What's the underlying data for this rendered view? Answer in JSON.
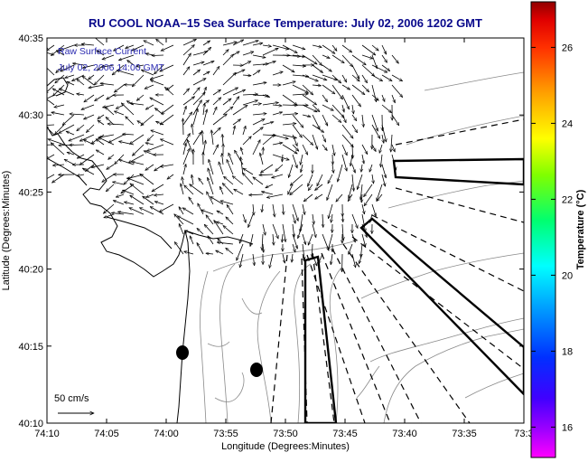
{
  "title": "RU COOL  NOAA–15  Sea Surface Temperature:  July 02, 2006 1202 GMT",
  "legend": {
    "line1": "Raw Surface Current",
    "line2": "July 02, 2006 14:00 GMT"
  },
  "scale_arrow_label": "50 cm/s",
  "xlabel": "Longitude (Degrees:Minutes)",
  "ylabel": "Latitude (Degrees:Minutes)",
  "colorbar_label": "Temperature (°C)",
  "x_ticks": [
    "74:10",
    "74:05",
    "74:00",
    "73:55",
    "73:50",
    "73:45",
    "73:40",
    "73:35",
    "73:3"
  ],
  "y_ticks": [
    "40:35",
    "40:30",
    "40:25",
    "40:20",
    "40:15",
    "40:10"
  ],
  "colorbar_ticks": [
    "26",
    "24",
    "22",
    "20",
    "18",
    "16"
  ],
  "colors": {
    "title": "#0a0a8c",
    "legend_text": "#2a2ab0",
    "frame": "#000000",
    "contour": "#8a8a8a",
    "vector": "#000000"
  },
  "colorbar_range": [
    15.2,
    27.2
  ]
}
